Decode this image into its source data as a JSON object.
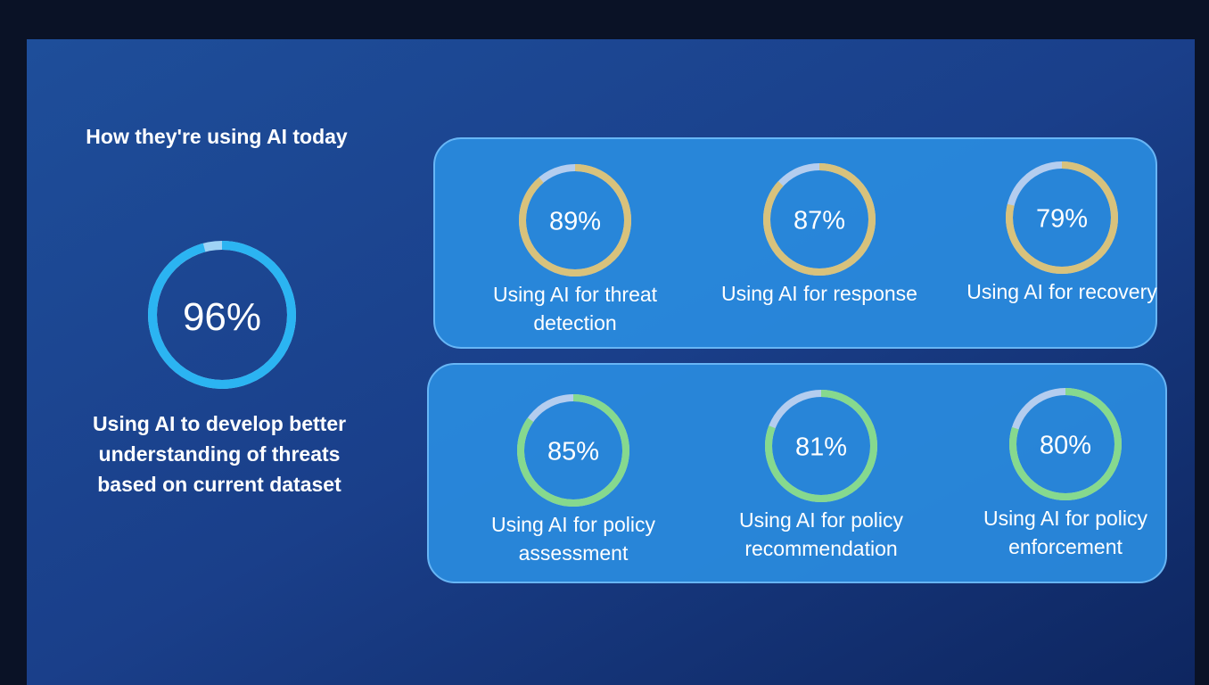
{
  "title": "How they're using AI today",
  "highlight": {
    "value": 96,
    "value_label": "96%",
    "label": "Using AI to develop better understanding of threats based on current dataset",
    "color": "#2bb4f2"
  },
  "panels": [
    {
      "color": "#d8c27c",
      "items": [
        {
          "value": 89,
          "value_label": "89%",
          "label": "Using AI for threat detection"
        },
        {
          "value": 87,
          "value_label": "87%",
          "label": "Using AI for response"
        },
        {
          "value": 79,
          "value_label": "79%",
          "label": "Using AI for recovery"
        }
      ]
    },
    {
      "color": "#86d98e",
      "items": [
        {
          "value": 85,
          "value_label": "85%",
          "label": "Using AI for policy assessment"
        },
        {
          "value": 81,
          "value_label": "81%",
          "label": "Using AI for policy recommendation"
        },
        {
          "value": 80,
          "value_label": "80%",
          "label": "Using AI for policy enforcement"
        }
      ]
    }
  ]
}
